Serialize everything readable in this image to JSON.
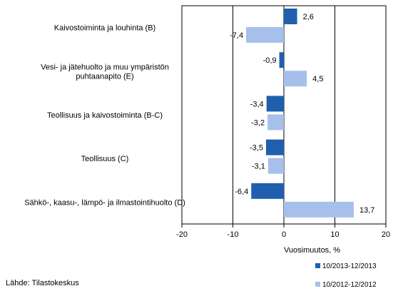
{
  "chart_data": {
    "type": "bar",
    "orientation": "horizontal",
    "categories": [
      [
        "Kaivostoiminta ja louhinta (B)"
      ],
      [
        "Vesi- ja jätehuolto ja muu ympäristön",
        "puhtaanapito (E)"
      ],
      [
        "Teollisuus ja kaivostoiminta (B-C)"
      ],
      [
        "Teollisuus (C)"
      ],
      [
        "Sähkö-, kaasu-, lämpö- ja ilmastointihuolto (D)"
      ]
    ],
    "series": [
      {
        "name": "10/2013-12/2013",
        "color": "#1f5fad",
        "values": [
          2.6,
          -0.9,
          -3.4,
          -3.5,
          -6.4
        ],
        "labels": [
          "2,6",
          "-0,9",
          "-3,4",
          "-3,5",
          "-6,4"
        ]
      },
      {
        "name": "10/2012-12/2012",
        "color": "#a7bfeb",
        "values": [
          -7.4,
          4.5,
          -3.2,
          -3.1,
          13.7
        ],
        "labels": [
          "-7,4",
          "4,5",
          "-3,2",
          "-3,1",
          "13,7"
        ]
      }
    ],
    "xlim": [
      -20,
      20
    ],
    "xticks": [
      -20,
      -10,
      0,
      10,
      20
    ],
    "xtick_labels": [
      "-20",
      "-10",
      "0",
      "10",
      "20"
    ],
    "gridlines": [
      -10,
      10
    ],
    "xlabel": "Vuosimuutos, %",
    "legend_position": "bottom-right"
  },
  "source": "Lähde: Tilastokeskus"
}
